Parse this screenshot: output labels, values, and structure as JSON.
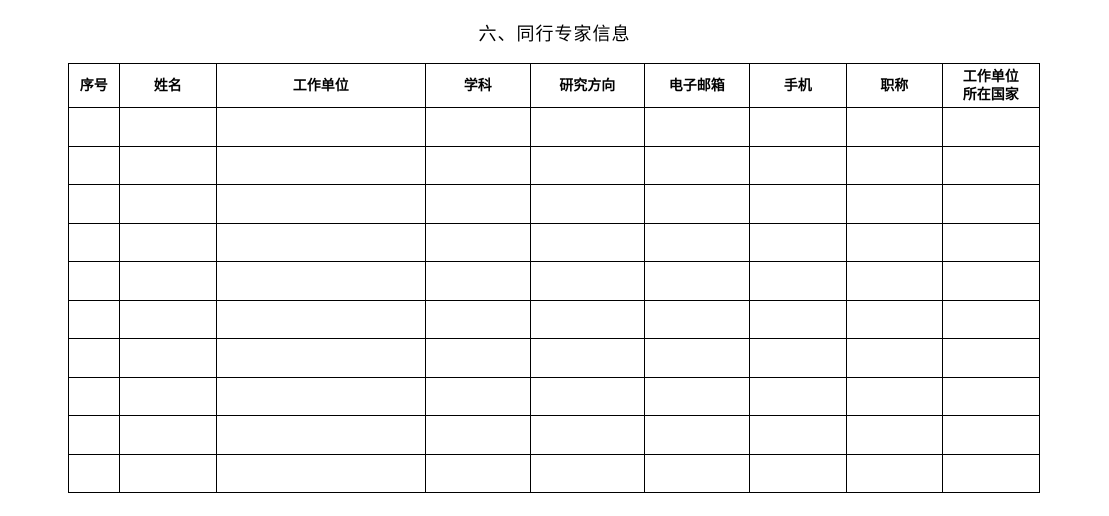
{
  "title": "六、同行专家信息",
  "table": {
    "headers": [
      "序号",
      "姓名",
      "工作单位",
      "学科",
      "研究方向",
      "电子邮箱",
      "手机",
      "职称",
      "工作单位所在国家"
    ],
    "last_header_lines": [
      "工作单位",
      "所在国家"
    ],
    "row_count": 10
  }
}
